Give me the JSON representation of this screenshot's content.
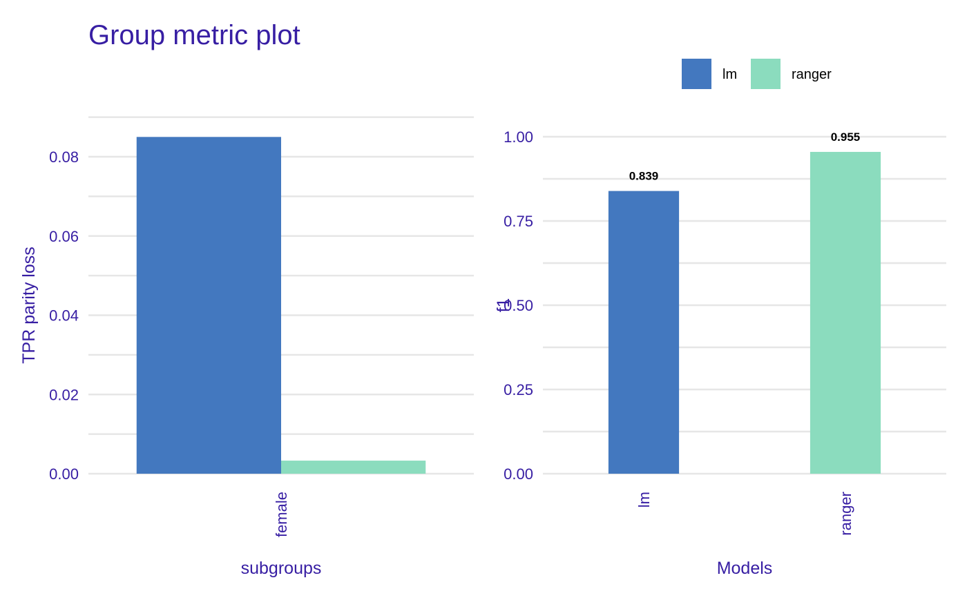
{
  "title": "Group metric plot",
  "colors": {
    "text": "#371ea3",
    "grid": "#e6e6e6",
    "lm": "#4378bf",
    "ranger": "#8bdcbe",
    "background": "#ffffff"
  },
  "legend": {
    "position": "top-right",
    "items": [
      {
        "label": "lm",
        "color": "#4378bf"
      },
      {
        "label": "ranger",
        "color": "#8bdcbe"
      }
    ]
  },
  "chart_data": [
    {
      "type": "bar",
      "panel": "left",
      "categories": [
        "female"
      ],
      "series": [
        {
          "name": "lm",
          "values": [
            0.085
          ],
          "color": "#4378bf"
        },
        {
          "name": "ranger",
          "values": [
            0.0033
          ],
          "color": "#8bdcbe"
        }
      ],
      "xlabel": "subgroups",
      "ylabel": "TPR parity loss",
      "ylim": [
        0,
        0.09
      ],
      "yticks": [
        0,
        0.02,
        0.04,
        0.06,
        0.08
      ],
      "ytick_labels": [
        "0.00",
        "0.02",
        "0.04",
        "0.06",
        "0.08"
      ],
      "grid": true,
      "x_tick_rotation": "vertical"
    },
    {
      "type": "bar",
      "panel": "right",
      "categories": [
        "lm",
        "ranger"
      ],
      "values": [
        0.839,
        0.955
      ],
      "colors": [
        "#4378bf",
        "#8bdcbe"
      ],
      "data_labels": [
        "0.839",
        "0.955"
      ],
      "xlabel": "Models",
      "ylabel": "f1",
      "ylim": [
        0,
        1.0
      ],
      "yticks": [
        0,
        0.25,
        0.5,
        0.75,
        1.0
      ],
      "ytick_labels": [
        "0.00",
        "0.25",
        "0.50",
        "0.75",
        "1.00"
      ],
      "grid": true,
      "x_tick_rotation": "vertical"
    }
  ]
}
